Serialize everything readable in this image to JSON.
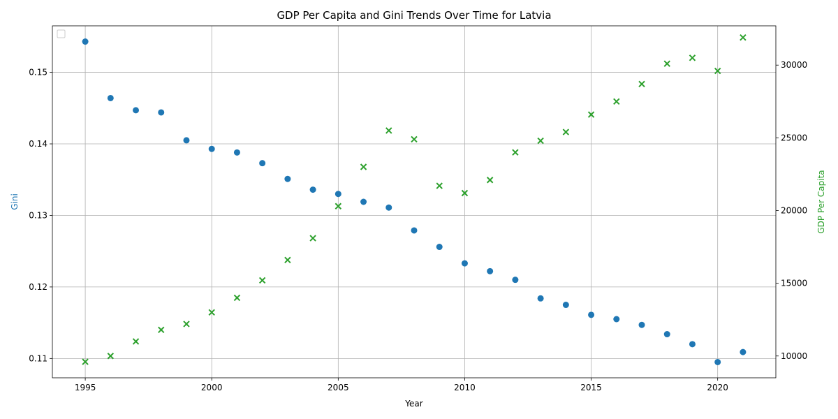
{
  "chart_data": {
    "type": "scatter",
    "title": "GDP Per Capita and Gini Trends Over Time for Latvia",
    "xlabel": "Year",
    "ylabel_left": "Gini",
    "ylabel_right": "GDP Per Capita",
    "xlim": [
      1993.7,
      2022.3
    ],
    "ylim_left": [
      0.1073,
      0.1565
    ],
    "ylim_right": [
      8500,
      32700
    ],
    "x_ticks": [
      1995,
      2000,
      2005,
      2010,
      2015,
      2020
    ],
    "y_left_ticks": [
      0.11,
      0.12,
      0.13,
      0.14,
      0.15
    ],
    "y_left_tick_labels": [
      "0.11",
      "0.12",
      "0.13",
      "0.14",
      "0.15"
    ],
    "y_right_ticks": [
      10000,
      15000,
      20000,
      25000,
      30000
    ],
    "y_right_tick_labels": [
      "10000",
      "15000",
      "20000",
      "25000",
      "30000"
    ],
    "grid": true,
    "legend": "upper-left (empty)",
    "colors": {
      "gini": "#1f77b4",
      "gdp": "#2ca02c"
    },
    "x": [
      1995,
      1996,
      1997,
      1998,
      1999,
      2000,
      2001,
      2002,
      2003,
      2004,
      2005,
      2006,
      2007,
      2008,
      2009,
      2010,
      2011,
      2012,
      2013,
      2014,
      2015,
      2016,
      2017,
      2018,
      2019,
      2020,
      2021
    ],
    "series": [
      {
        "axis": "left",
        "marker": "circle",
        "values": [
          0.1543,
          0.1464,
          0.1447,
          0.1444,
          0.1405,
          0.1393,
          0.1388,
          0.1373,
          0.1351,
          0.1336,
          0.133,
          0.1319,
          0.1311,
          0.1279,
          0.1256,
          0.1233,
          0.1222,
          0.121,
          0.1184,
          0.1175,
          0.1161,
          0.1155,
          0.1147,
          0.1134,
          0.112,
          0.1095,
          0.1109
        ]
      },
      {
        "axis": "right",
        "marker": "x",
        "values": [
          9600,
          10000,
          11000,
          11800,
          12200,
          13000,
          14000,
          15200,
          16600,
          18100,
          20300,
          23000,
          25500,
          24900,
          21700,
          21200,
          22100,
          24000,
          24800,
          25400,
          26600,
          27500,
          28700,
          30100,
          30500,
          29600,
          31900
        ]
      }
    ]
  }
}
